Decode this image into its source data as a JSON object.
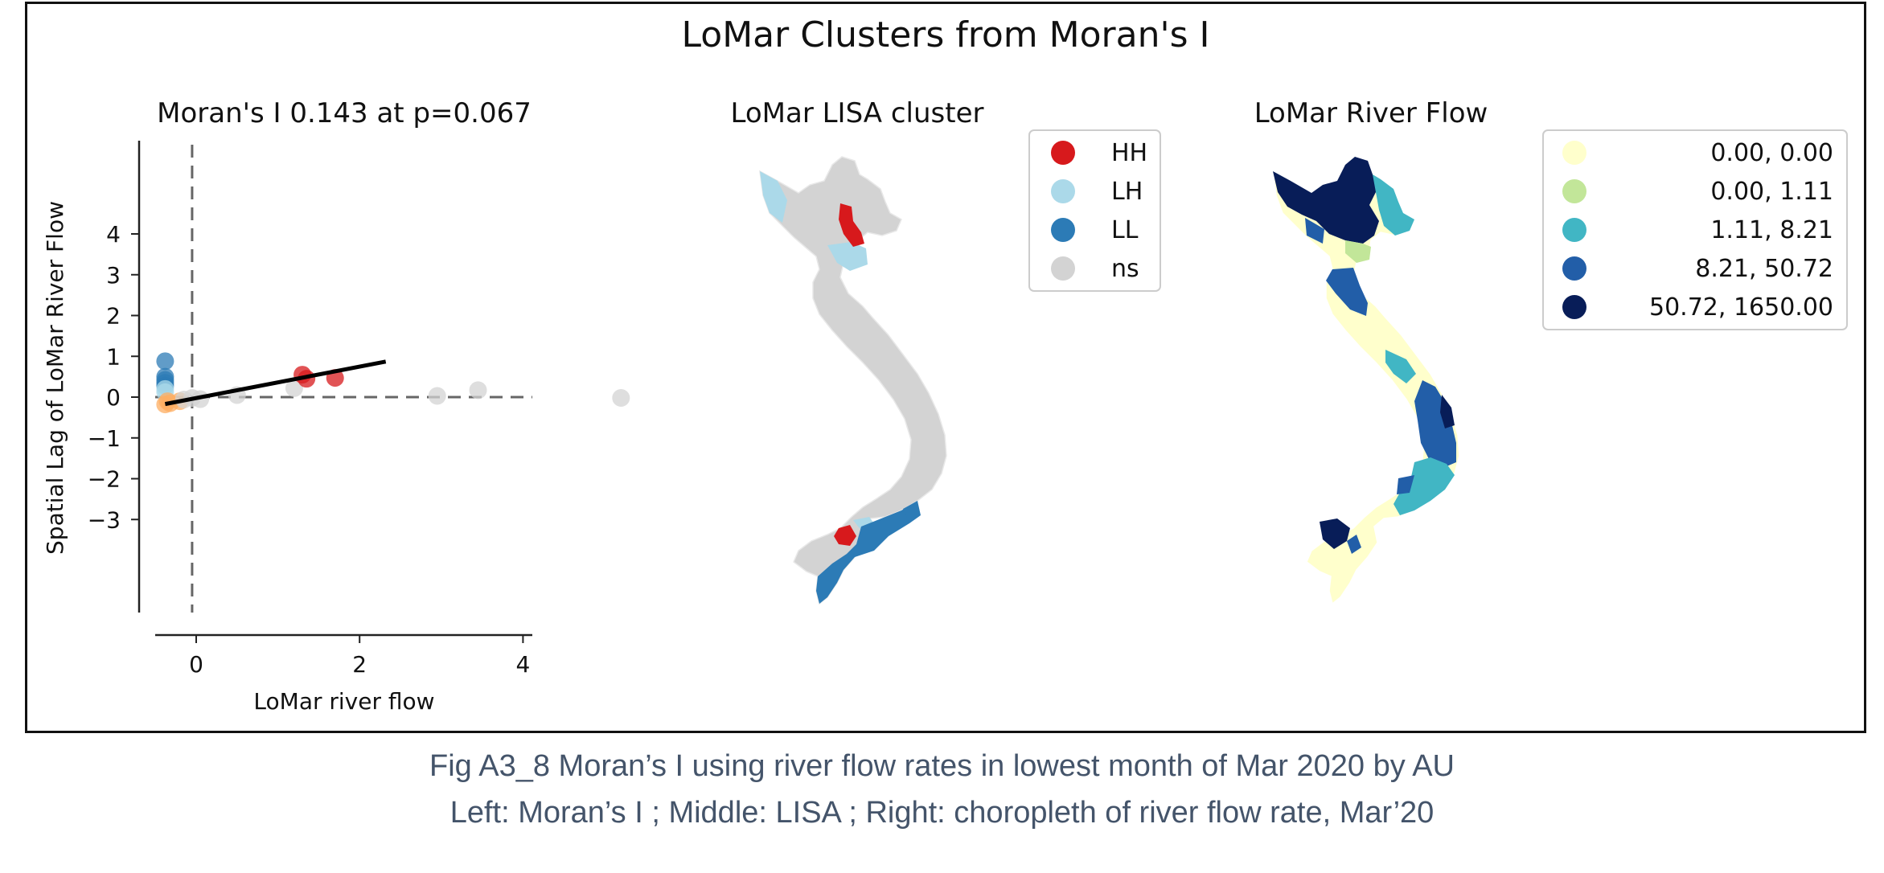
{
  "figure": {
    "title": "LoMar Clusters from Moran's I",
    "caption_line1": "Fig A3_8 Moran’s I using river flow rates in lowest month of Mar 2020 by AU",
    "caption_line2": "Left: Moran’s I ; Middle: LISA ; Right: choropleth of river flow rate, Mar’20"
  },
  "chart_data": [
    {
      "type": "scatter",
      "title": "Moran's I 0.143 at p=0.067",
      "xlabel": "LoMar river flow",
      "ylabel": "Spatial Lag of LoMar River Flow",
      "xlim": [
        -0.7,
        5.5
      ],
      "ylim": [
        -3.5,
        4.2
      ],
      "xticks": [
        0,
        2,
        4
      ],
      "yticks": [
        4,
        3,
        2,
        1,
        0,
        -1,
        -2,
        -3
      ],
      "grid": false,
      "colors": {
        "HH": "#d7191c",
        "LH": "#abd9e9",
        "LL": "#2c7bb6",
        "HL": "#fdae61",
        "ns": "#d3d3d3",
        "fit": "#000000",
        "ref": "#666666"
      },
      "points": [
        {
          "x": -0.38,
          "y": 0.88,
          "c": "LL"
        },
        {
          "x": -0.38,
          "y": 0.5,
          "c": "LL"
        },
        {
          "x": -0.38,
          "y": 0.42,
          "c": "LL"
        },
        {
          "x": -0.38,
          "y": 0.35,
          "c": "LL"
        },
        {
          "x": -0.38,
          "y": 0.28,
          "c": "LL"
        },
        {
          "x": -0.38,
          "y": 0.2,
          "c": "LH"
        },
        {
          "x": -0.38,
          "y": 0.12,
          "c": "LH"
        },
        {
          "x": -0.35,
          "y": -0.1,
          "c": "HL"
        },
        {
          "x": -0.32,
          "y": -0.15,
          "c": "HL"
        },
        {
          "x": -0.38,
          "y": -0.18,
          "c": "HL"
        },
        {
          "x": -0.2,
          "y": -0.1,
          "c": "HL"
        },
        {
          "x": -0.15,
          "y": -0.06,
          "c": "ns"
        },
        {
          "x": -0.05,
          "y": -0.02,
          "c": "ns"
        },
        {
          "x": 0.05,
          "y": -0.05,
          "c": "ns"
        },
        {
          "x": 0.5,
          "y": 0.05,
          "c": "ns"
        },
        {
          "x": 1.2,
          "y": 0.22,
          "c": "ns"
        },
        {
          "x": 1.3,
          "y": 0.55,
          "c": "HH"
        },
        {
          "x": 1.35,
          "y": 0.45,
          "c": "HH"
        },
        {
          "x": 1.7,
          "y": 0.47,
          "c": "HH"
        },
        {
          "x": 2.95,
          "y": 0.03,
          "c": "ns"
        },
        {
          "x": 3.45,
          "y": 0.17,
          "c": "ns"
        },
        {
          "x": 5.2,
          "y": -0.02,
          "c": "ns"
        }
      ],
      "fit_line": {
        "x": [
          -0.38,
          2.32
        ],
        "y": [
          -0.17,
          0.87
        ]
      },
      "ref_lines": {
        "x": -0.05,
        "y": 0
      }
    },
    {
      "type": "map",
      "title": "LoMar LISA cluster",
      "legend_position": "upper-right",
      "legend": [
        {
          "label": "HH",
          "color": "#d7191c"
        },
        {
          "label": "LH",
          "color": "#abd9e9"
        },
        {
          "label": "LL",
          "color": "#2c7bb6"
        },
        {
          "label": "ns",
          "color": "#d3d3d3"
        }
      ]
    },
    {
      "type": "map",
      "title": "LoMar River Flow",
      "legend_position": "upper-right",
      "legend": [
        {
          "label": "0.00,    0.00",
          "color": "#ffffcc"
        },
        {
          "label": "0.00,    1.11",
          "color": "#c2e699"
        },
        {
          "label": "1.11,    8.21",
          "color": "#41b6c4"
        },
        {
          "label": "8.21,   50.72",
          "color": "#225ea8"
        },
        {
          "label": "50.72, 1650.00",
          "color": "#081d58"
        }
      ]
    }
  ]
}
